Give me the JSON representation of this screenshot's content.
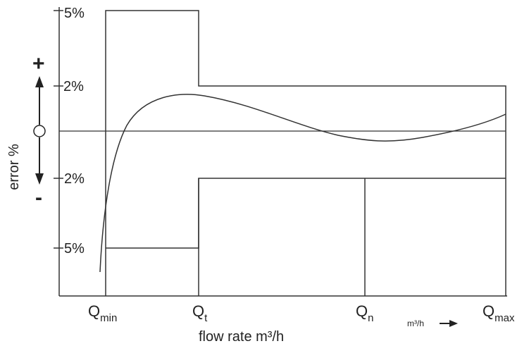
{
  "y_ticks": {
    "top_5": "5%",
    "top_2": "2%",
    "bottom_2": "2%",
    "bottom_5": "5%"
  },
  "y_axis": {
    "label": "error %",
    "plus": "+",
    "minus": "-"
  },
  "x_ticks": [
    {
      "main": "Q",
      "sub": "min"
    },
    {
      "main": "Q",
      "sub": "t"
    },
    {
      "main": "Q",
      "sub": "n"
    },
    {
      "main": "Q",
      "sub": "max"
    }
  ],
  "x_axis": {
    "label": "flow rate m³/h",
    "unit": "m³/h"
  },
  "colors": {
    "line": "#333333",
    "text": "#222222"
  }
}
